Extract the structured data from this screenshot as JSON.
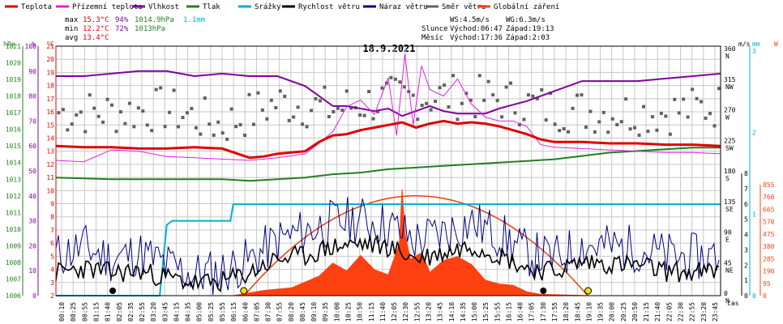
{
  "title": "18.9.2021",
  "legend": [
    {
      "name": "Teplota",
      "color": "#e00000"
    },
    {
      "name": "Přízemní teplota",
      "color": "#e020e0"
    },
    {
      "name": "Vlhkost",
      "color": "#8000a0"
    },
    {
      "name": "Tlak",
      "color": "#208020"
    },
    {
      "name": "Srážky",
      "color": "#00b0d0"
    },
    {
      "name": "Rychlost větru",
      "color": "#000000"
    },
    {
      "name": "Náraz větru",
      "color": "#000080"
    },
    {
      "name": "Směr větru",
      "color": "#606060"
    },
    {
      "name": "Globální záření",
      "color": "#ff4010"
    }
  ],
  "stats": {
    "max_label": "max",
    "max_temp": "15.3°C",
    "max_hum": "94%",
    "max_press": "1014.9hPa",
    "rain": "1.1mm",
    "min_label": "min",
    "min_temp": "12.2°C",
    "min_hum": "72%",
    "min_press": "1013hPa",
    "avg_label": "avg",
    "avg_temp": "13.4°C"
  },
  "info": {
    "ws": "WS:4.5m/s",
    "wg": "WG:6.3m/s",
    "sun_label": "Slunce",
    "sun_rise": "Východ:06:47",
    "sun_set": "Západ:19:13",
    "moon_label": "Měsíc",
    "moon_rise": "Východ:17:36",
    "moon_set": "Západ:2:03"
  },
  "axis_headers": {
    "hpa": "hPa",
    "pct": "%",
    "degc": "°C",
    "ms": "m/s",
    "mm": "mm",
    "w": "W"
  },
  "x_axis_label": "čas",
  "colors": {
    "temp": "#e00000",
    "ground": "#e020e0",
    "hum": "#8000a0",
    "press": "#208020",
    "rain": "#00b0d0",
    "wind": "#000000",
    "gust": "#000080",
    "dir": "#606060",
    "solar": "#ff4010",
    "grid": "#c8c8c8",
    "frame": "#000000"
  },
  "chart_data": {
    "type": "line",
    "title": "18.9.2021",
    "xlabel": "čas",
    "x_range": [
      "00:00",
      "24:00"
    ],
    "x_tick_labels": [
      "00:10",
      "00:25",
      "00:55",
      "01:15",
      "01:40",
      "02:05",
      "02:35",
      "02:55",
      "03:20",
      "03:45",
      "04:15",
      "04:35",
      "05:00",
      "05:25",
      "05:55",
      "06:15",
      "06:40",
      "07:05",
      "07:30",
      "07:55",
      "08:20",
      "08:45",
      "09:10",
      "09:35",
      "10:00",
      "10:25",
      "10:50",
      "11:15",
      "11:40",
      "12:05",
      "12:30",
      "12:55",
      "13:20",
      "13:45",
      "14:10",
      "14:35",
      "15:00",
      "15:25",
      "15:55",
      "16:15",
      "16:40",
      "17:05",
      "17:30",
      "17:55",
      "18:20",
      "18:45",
      "19:10",
      "19:35",
      "20:00",
      "20:25",
      "20:50",
      "21:15",
      "21:40",
      "22:05",
      "22:30",
      "22:55",
      "23:20",
      "23:45"
    ],
    "y_left_hpa": {
      "range": [
        1006,
        1021
      ],
      "ticks": [
        "1021",
        "1020",
        "1019",
        "1018",
        "1017",
        "1016",
        "1015",
        "1014",
        "1013",
        "1012",
        "1011",
        "1010",
        "1009",
        "1008",
        "1007",
        "1006"
      ]
    },
    "y_left_pct": {
      "range": [
        0,
        100
      ],
      "ticks": [
        "100",
        "90",
        "80",
        "70",
        "60",
        "50",
        "40",
        "30",
        "20",
        "10",
        "0"
      ]
    },
    "y_left_degc": {
      "range": [
        2,
        21
      ],
      "ticks": [
        "21",
        "20",
        "19",
        "18",
        "17",
        "16",
        "15",
        "14",
        "13",
        "12",
        "11",
        "10",
        "9",
        "8",
        "7",
        "6",
        "5",
        "4",
        "3",
        "2"
      ]
    },
    "y_right_dir": {
      "ticks": [
        "360 N",
        "315 NW",
        "270 W",
        "225 SW",
        "180 S",
        "135 SE",
        "90 E",
        "45 NE",
        "0 N"
      ]
    },
    "y_right_ms": {
      "ticks": [
        "8",
        "7",
        "6",
        "5",
        "4",
        "3",
        "2",
        "1",
        "0"
      ]
    },
    "y_right_mm": {
      "ticks": [
        "3",
        "2",
        "1",
        "0"
      ]
    },
    "y_right_w": {
      "ticks": [
        "855",
        "760",
        "665",
        "570",
        "475",
        "380",
        "285",
        "190",
        "95",
        "0"
      ]
    },
    "series": [
      {
        "name": "Teplota",
        "unit": "°C",
        "x_hours": [
          0,
          1,
          2,
          3,
          4,
          5,
          6,
          7,
          7.5,
          8,
          8.5,
          9,
          9.5,
          10,
          10.5,
          11,
          11.5,
          12,
          12.5,
          13,
          13.5,
          14,
          14.5,
          15,
          15.5,
          16,
          16.5,
          17,
          17.5,
          18,
          19,
          20,
          21,
          22,
          23,
          24
        ],
        "values": [
          13.4,
          13.3,
          13.3,
          13.2,
          13.2,
          13.3,
          13.2,
          12.5,
          12.6,
          12.8,
          12.9,
          13,
          13.7,
          14.2,
          14.3,
          14.6,
          14.8,
          15,
          15.2,
          14.8,
          15.1,
          15.3,
          15.1,
          15.2,
          15.1,
          14.9,
          14.6,
          14.3,
          13.9,
          13.7,
          13.7,
          13.6,
          13.6,
          13.5,
          13.5,
          13.4
        ]
      },
      {
        "name": "Přízemní teplota",
        "unit": "°C",
        "x_hours": [
          0,
          1,
          2,
          3,
          4,
          5,
          6,
          7,
          8,
          9,
          9.5,
          10,
          10.5,
          11,
          11.5,
          12,
          12.3,
          12.6,
          12.9,
          13.2,
          13.5,
          14,
          14.5,
          15,
          15.5,
          16,
          16.5,
          17,
          17.5,
          18,
          19,
          20,
          21,
          22,
          23,
          24
        ],
        "values": [
          12.3,
          12.2,
          13.1,
          13,
          12.6,
          12.5,
          12.4,
          12.3,
          12.5,
          12.8,
          13.6,
          14.5,
          16.4,
          16.9,
          15.8,
          18.6,
          14.2,
          20.4,
          15,
          19.5,
          17.7,
          17.2,
          18.5,
          16.6,
          15.6,
          15.3,
          15.3,
          14.9,
          13.5,
          13.3,
          13.2,
          13.1,
          13,
          12.9,
          12.9,
          12.8
        ]
      },
      {
        "name": "Vlhkost",
        "unit": "%",
        "x_hours": [
          0,
          1,
          2,
          3,
          4,
          5,
          6,
          7,
          8,
          9,
          9.5,
          10,
          10.5,
          11,
          11.5,
          12,
          12.5,
          13,
          13.5,
          14,
          14.5,
          15,
          15.5,
          16,
          17,
          18,
          19,
          20,
          21,
          22,
          23,
          24
        ],
        "values": [
          88,
          88,
          89,
          90,
          90,
          88,
          89,
          88,
          88,
          84,
          80,
          76,
          76,
          75,
          74,
          75,
          72,
          74,
          76,
          74,
          73,
          73,
          73,
          75,
          78,
          82,
          86,
          86,
          86,
          87,
          88,
          89
        ]
      },
      {
        "name": "Tlak",
        "unit": "hPa",
        "x_hours": [
          0,
          2,
          4,
          6,
          7,
          8,
          9,
          10,
          11,
          12,
          13,
          14,
          15,
          16,
          17,
          18,
          19,
          20,
          21,
          22,
          23,
          24
        ],
        "values": [
          1013.1,
          1013,
          1013,
          1013,
          1012.9,
          1013,
          1013.1,
          1013.3,
          1013.4,
          1013.6,
          1013.7,
          1013.8,
          1013.9,
          1014,
          1014.1,
          1014.2,
          1014.4,
          1014.6,
          1014.7,
          1014.8,
          1014.9,
          1014.9
        ]
      },
      {
        "name": "Srážky",
        "unit": "mm",
        "x_hours": [
          0,
          3.75,
          4.0,
          4.2,
          6.3,
          6.4,
          24
        ],
        "values": [
          0,
          0,
          0.85,
          0.9,
          0.9,
          1.1,
          1.1
        ]
      },
      {
        "name": "Globální záření",
        "unit": "W",
        "x_hours": [
          0,
          6.4,
          7.5,
          8.5,
          9.5,
          10,
          10.5,
          11,
          11.5,
          12,
          12.4,
          12.5,
          12.6,
          12.8,
          13.2,
          13.5,
          14,
          14.5,
          15,
          15.5,
          16,
          16.5,
          17,
          17.5,
          18.5,
          19.2,
          24
        ],
        "values": [
          0,
          0,
          40,
          60,
          150,
          250,
          190,
          310,
          200,
          160,
          400,
          820,
          480,
          280,
          330,
          180,
          270,
          300,
          240,
          120,
          90,
          80,
          30,
          10,
          5,
          0,
          0
        ]
      },
      {
        "name": "Rychlost větru",
        "unit": "m/s",
        "x_hours": [
          0,
          1,
          2,
          3,
          4,
          5,
          6,
          7,
          8,
          9,
          10,
          11,
          12,
          13,
          14,
          15,
          16,
          17,
          18,
          19,
          20,
          21,
          22,
          23,
          24
        ],
        "values": [
          1.5,
          1.8,
          1.5,
          1.6,
          1.2,
          0.8,
          0.9,
          1.5,
          2.4,
          2.6,
          3.2,
          3.4,
          3.2,
          2.4,
          2.8,
          3.3,
          2.7,
          1.8,
          1.6,
          2.2,
          2.1,
          2,
          1.6,
          1.5,
          1.6
        ]
      },
      {
        "name": "Náraz větru",
        "unit": "m/s",
        "x_hours": [
          0,
          1,
          2,
          3,
          4,
          5,
          6,
          7,
          8,
          9,
          10,
          11,
          12,
          13,
          14,
          15,
          16,
          17,
          18,
          19,
          20,
          21,
          22,
          23,
          24
        ],
        "values": [
          2.6,
          3.2,
          2.4,
          2.8,
          2,
          1.4,
          1.6,
          2.3,
          3.6,
          4.2,
          4.8,
          5,
          4.6,
          3.6,
          4.1,
          4.8,
          4,
          2.8,
          2.4,
          3.3,
          3.2,
          3.1,
          2.6,
          2.5,
          2.6
        ]
      },
      {
        "name": "Směr větru",
        "unit": "°",
        "x_hours": [
          0,
          2,
          4,
          6,
          8,
          10,
          12,
          14,
          16,
          18,
          20,
          22,
          24
        ],
        "values": [
          280,
          280,
          285,
          260,
          295,
          285,
          300,
          305,
          300,
          285,
          280,
          280,
          290
        ]
      }
    ],
    "sun_markers": {
      "rise": "06:47",
      "set": "19:13"
    },
    "moon_markers": {
      "set": "02:03",
      "rise": "17:36"
    },
    "grid": true
  }
}
